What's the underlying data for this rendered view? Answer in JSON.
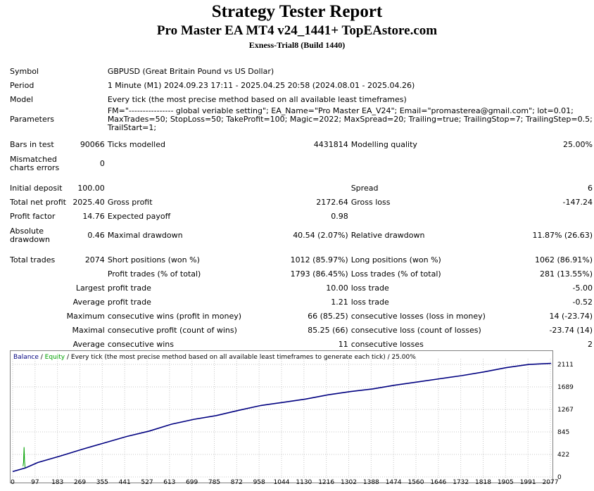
{
  "report": {
    "title": "Strategy Tester Report",
    "ea_name": "Pro Master EA MT4 v24_1441+ TopEAstore.com",
    "server": "Exness-Trial8 (Build 1440)"
  },
  "info": {
    "symbol_label": "Symbol",
    "symbol": "GBPUSD (Great Britain Pound vs US Dollar)",
    "period_label": "Period",
    "period": "1 Minute (M1) 2024.09.23 17:11 - 2025.04.25 20:58 (2024.08.01 - 2025.04.26)",
    "model_label": "Model",
    "model": "Every tick (the most precise method based on all available least timeframes)",
    "parameters_label": "Parameters",
    "parameters": "FM=\"---------------- global veriable setting\"; EA_Name=\"Pro Master EA_V24\"; Email=\"promasterea@gmail.com\"; lot=0.01; MaxTrades=50; StopLoss=50; TakeProfit=100; Magic=2022; MaxSpread=20; Trailing=true; TrailingStop=7; TrailingStep=0.5; TrailStart=1;"
  },
  "stats": {
    "bars_in_test_label": "Bars in test",
    "bars_in_test": "90066",
    "ticks_modelled_label": "Ticks modelled",
    "ticks_modelled": "4431814",
    "modelling_quality_label": "Modelling quality",
    "modelling_quality": "25.00%",
    "mismatched_label": "Mismatched charts errors",
    "mismatched": "0",
    "initial_deposit_label": "Initial deposit",
    "initial_deposit": "100.00",
    "spread_label": "Spread",
    "spread": "6",
    "total_net_profit_label": "Total net profit",
    "total_net_profit": "2025.40",
    "gross_profit_label": "Gross profit",
    "gross_profit": "2172.64",
    "gross_loss_label": "Gross loss",
    "gross_loss": "-147.24",
    "profit_factor_label": "Profit factor",
    "profit_factor": "14.76",
    "expected_payoff_label": "Expected payoff",
    "expected_payoff": "0.98",
    "absolute_drawdown_label": "Absolute drawdown",
    "absolute_drawdown": "0.46",
    "maximal_drawdown_label": "Maximal drawdown",
    "maximal_drawdown": "40.54 (2.07%)",
    "relative_drawdown_label": "Relative drawdown",
    "relative_drawdown": "11.87% (26.63)",
    "total_trades_label": "Total trades",
    "total_trades": "2074",
    "short_positions_label": "Short positions (won %)",
    "short_positions": "1012 (85.97%)",
    "long_positions_label": "Long positions (won %)",
    "long_positions": "1062 (86.91%)",
    "profit_trades_label": "Profit trades (% of total)",
    "profit_trades": "1793 (86.45%)",
    "loss_trades_label": "Loss trades (% of total)",
    "loss_trades": "281 (13.55%)",
    "largest_label": "Largest",
    "largest_profit_label": "profit trade",
    "largest_profit": "10.00",
    "largest_loss_label": "loss trade",
    "largest_loss": "-5.00",
    "average_label": "Average",
    "average_profit_label": "profit trade",
    "average_profit": "1.21",
    "average_loss_label": "loss trade",
    "average_loss": "-0.52",
    "maximum_label": "Maximum",
    "max_cons_wins_label": "consecutive wins (profit in money)",
    "max_cons_wins": "66 (85.25)",
    "max_cons_losses_label": "consecutive losses (loss in money)",
    "max_cons_losses": "14 (-23.74)",
    "maximal_label": "Maximal",
    "maximal_cons_profit_label": "consecutive profit (count of wins)",
    "maximal_cons_profit": "85.25 (66)",
    "maximal_cons_loss_label": "consecutive loss (count of losses)",
    "maximal_cons_loss": "-23.74 (14)",
    "average2_label": "Average",
    "avg_cons_wins_label": "consecutive wins",
    "avg_cons_wins": "11",
    "avg_cons_losses_label": "consecutive losses",
    "avg_cons_losses": "2"
  },
  "chart_data": {
    "type": "line",
    "legend": {
      "balance": "Balance",
      "sep1": " / ",
      "equity": "Equity",
      "rest": " / Every tick (the most precise method based on all available least timeframes to generate each tick) / 25.00%"
    },
    "colors": {
      "balance": "#000080",
      "equity": "#00a000",
      "grid": "#c8c8c8",
      "frame": "#808080"
    },
    "x_ticks": [
      "0",
      "97",
      "183",
      "269",
      "355",
      "441",
      "527",
      "613",
      "699",
      "785",
      "872",
      "958",
      "1044",
      "1130",
      "1216",
      "1302",
      "1388",
      "1474",
      "1560",
      "1646",
      "1732",
      "1818",
      "1905",
      "1991",
      "2077"
    ],
    "y_ticks": [
      "0",
      "422",
      "845",
      "1267",
      "1689",
      "2111"
    ],
    "xlim": [
      0,
      2074
    ],
    "ylim": [
      0,
      2111
    ],
    "series": [
      {
        "name": "Balance",
        "x": [
          0,
          50,
          97,
          183,
          269,
          355,
          441,
          527,
          613,
          699,
          785,
          872,
          958,
          1044,
          1130,
          1216,
          1302,
          1388,
          1474,
          1560,
          1646,
          1732,
          1818,
          1905,
          1991,
          2077
        ],
        "values": [
          100,
          170,
          270,
          390,
          520,
          640,
          760,
          860,
          990,
          1080,
          1150,
          1250,
          1340,
          1400,
          1460,
          1540,
          1600,
          1650,
          1720,
          1780,
          1840,
          1900,
          1970,
          2050,
          2110,
          2130
        ]
      },
      {
        "name": "Equity",
        "x": [
          40,
          42,
          44,
          46,
          48
        ],
        "values": [
          200,
          280,
          560,
          300,
          170
        ]
      }
    ]
  }
}
